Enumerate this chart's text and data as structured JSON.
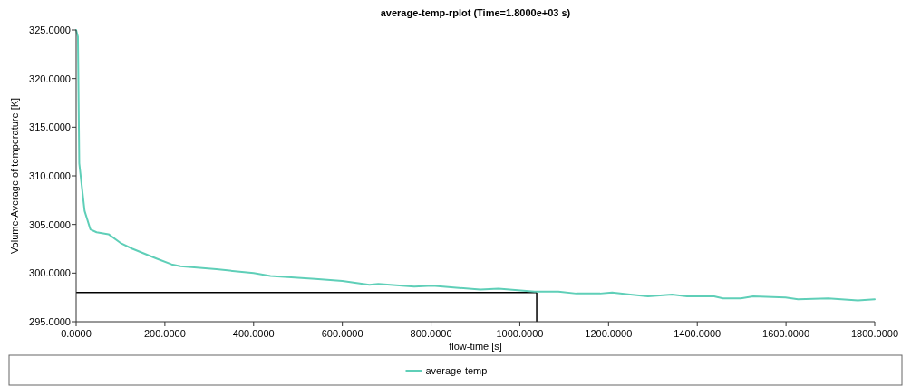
{
  "chart_data": {
    "type": "line",
    "title": "average-temp-rplot (Time=1.8000e+03 s)",
    "xlabel": "flow-time [s]",
    "ylabel": "Volume-Average of temperature [K]",
    "xlim": [
      0,
      1800
    ],
    "ylim": [
      295,
      325
    ],
    "xticks": [
      {
        "value": 0,
        "label": "0.0000"
      },
      {
        "value": 200,
        "label": "200.0000"
      },
      {
        "value": 400,
        "label": "400.0000"
      },
      {
        "value": 600,
        "label": "600.0000"
      },
      {
        "value": 800,
        "label": "800.0000"
      },
      {
        "value": 1000,
        "label": "1000.0000"
      },
      {
        "value": 1200,
        "label": "1200.0000"
      },
      {
        "value": 1400,
        "label": "1400.0000"
      },
      {
        "value": 1600,
        "label": "1600.0000"
      },
      {
        "value": 1800,
        "label": "1800.0000"
      }
    ],
    "yticks": [
      {
        "value": 295,
        "label": "295.0000"
      },
      {
        "value": 300,
        "label": "300.0000"
      },
      {
        "value": 305,
        "label": "305.0000"
      },
      {
        "value": 310,
        "label": "310.0000"
      },
      {
        "value": 315,
        "label": "315.0000"
      },
      {
        "value": 320,
        "label": "320.0000"
      },
      {
        "value": 325,
        "label": "325.0000"
      }
    ],
    "legend": "bottom",
    "grid": false,
    "ref_lines": [
      {
        "axis": "y",
        "value": 298,
        "color": "#000000"
      },
      {
        "axis": "x",
        "value": 1038,
        "color": "#000000"
      }
    ],
    "series": [
      {
        "name": "average-temp",
        "color": "#5fcfb8",
        "x": [
          0,
          4,
          7,
          19,
          32,
          46,
          73,
          100,
          127,
          181,
          215,
          235,
          316,
          400,
          438,
          539,
          600,
          661,
          681,
          762,
          803,
          857,
          911,
          952,
          1033,
          1087,
          1127,
          1181,
          1208,
          1249,
          1289,
          1343,
          1377,
          1438,
          1458,
          1498,
          1526,
          1599,
          1627,
          1695,
          1762,
          1800
        ],
        "values": [
          325,
          324.3,
          311.3,
          306.4,
          304.5,
          304.2,
          304.0,
          303.1,
          302.5,
          301.5,
          300.9,
          300.7,
          300.4,
          300.0,
          299.7,
          299.4,
          299.2,
          298.8,
          298.9,
          298.6,
          298.7,
          298.5,
          298.3,
          298.4,
          298.1,
          298.1,
          297.9,
          297.9,
          298.0,
          297.8,
          297.6,
          297.8,
          297.6,
          297.6,
          297.4,
          297.4,
          297.6,
          297.5,
          297.3,
          297.4,
          297.2,
          297.3
        ]
      }
    ]
  }
}
